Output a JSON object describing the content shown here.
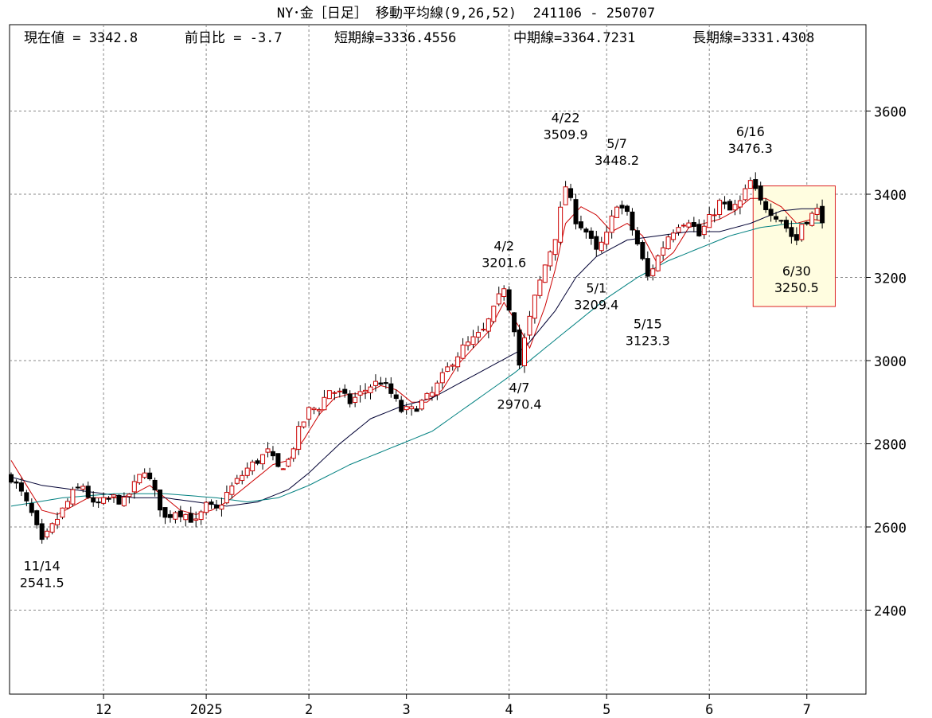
{
  "title": "NY･金［日足］ 移動平均線(9,26,52)  241106 - 250707",
  "info": {
    "current": "現在値 = 3342.8",
    "change": "前日比 = -3.7",
    "short": "短期線=3336.4556",
    "mid": "中期線=3364.7231",
    "long": "長期線=3331.4308"
  },
  "colors": {
    "up_fill": "#ffffff",
    "down_fill": "#000000",
    "short_ma": "#cc0000",
    "mid_ma": "#000033",
    "long_ma": "#008080",
    "highlight_fill": "#fffde0",
    "highlight_border": "#dd2222",
    "grid": "#888888"
  },
  "chart_data": {
    "type": "candlestick",
    "title": "NY･金［日足］ 移動平均線(9,26,52)  241106 - 250707",
    "ylim": [
      2200,
      3800
    ],
    "yticks": [
      2400,
      2600,
      2800,
      3000,
      3200,
      3400,
      3600
    ],
    "x_labels": [
      {
        "label": "12",
        "index": 18
      },
      {
        "label": "2025",
        "index": 38
      },
      {
        "label": "2",
        "index": 58
      },
      {
        "label": "3",
        "index": 77
      },
      {
        "label": "4",
        "index": 97
      },
      {
        "label": "5",
        "index": 116
      },
      {
        "label": "6",
        "index": 136
      },
      {
        "label": "7",
        "index": 155
      }
    ],
    "candle_count": 159,
    "annotations": [
      {
        "date": "11/14",
        "value": "2541.5",
        "index": 6,
        "position": "below"
      },
      {
        "date": "4/2",
        "value": "3201.6",
        "index": 96,
        "position": "above"
      },
      {
        "date": "4/7",
        "value": "2970.4",
        "index": 99,
        "position": "below"
      },
      {
        "date": "4/22",
        "value": "3509.9",
        "index": 108,
        "position": "above"
      },
      {
        "date": "5/1",
        "value": "3209.4",
        "index": 114,
        "position": "below"
      },
      {
        "date": "5/7",
        "value": "3448.2",
        "index": 118,
        "position": "above"
      },
      {
        "date": "5/15",
        "value": "3123.3",
        "index": 124,
        "position": "below"
      },
      {
        "date": "6/16",
        "value": "3476.3",
        "index": 144,
        "position": "above"
      },
      {
        "date": "6/30",
        "value": "3250.5",
        "index": 153,
        "position": "below"
      }
    ],
    "highlight": {
      "start_index": 145,
      "end_index": 161,
      "low": 3130,
      "high": 3420
    },
    "close_path": [
      [
        0,
        2720
      ],
      [
        2,
        2680
      ],
      [
        4,
        2630
      ],
      [
        6,
        2560
      ],
      [
        8,
        2600
      ],
      [
        10,
        2640
      ],
      [
        12,
        2680
      ],
      [
        14,
        2700
      ],
      [
        16,
        2650
      ],
      [
        18,
        2660
      ],
      [
        20,
        2670
      ],
      [
        22,
        2660
      ],
      [
        24,
        2700
      ],
      [
        26,
        2740
      ],
      [
        28,
        2680
      ],
      [
        30,
        2620
      ],
      [
        32,
        2640
      ],
      [
        34,
        2630
      ],
      [
        36,
        2610
      ],
      [
        38,
        2650
      ],
      [
        40,
        2640
      ],
      [
        42,
        2680
      ],
      [
        44,
        2710
      ],
      [
        46,
        2740
      ],
      [
        48,
        2760
      ],
      [
        50,
        2780
      ],
      [
        52,
        2740
      ],
      [
        54,
        2760
      ],
      [
        56,
        2830
      ],
      [
        58,
        2880
      ],
      [
        60,
        2890
      ],
      [
        62,
        2930
      ],
      [
        64,
        2920
      ],
      [
        66,
        2900
      ],
      [
        68,
        2920
      ],
      [
        70,
        2940
      ],
      [
        72,
        2950
      ],
      [
        74,
        2920
      ],
      [
        76,
        2880
      ],
      [
        78,
        2880
      ],
      [
        80,
        2900
      ],
      [
        82,
        2920
      ],
      [
        84,
        2960
      ],
      [
        86,
        3000
      ],
      [
        88,
        3030
      ],
      [
        90,
        3050
      ],
      [
        92,
        3070
      ],
      [
        94,
        3120
      ],
      [
        96,
        3180
      ],
      [
        98,
        3080
      ],
      [
        99,
        2990
      ],
      [
        100,
        3050
      ],
      [
        102,
        3150
      ],
      [
        104,
        3230
      ],
      [
        106,
        3300
      ],
      [
        108,
        3420
      ],
      [
        110,
        3340
      ],
      [
        112,
        3310
      ],
      [
        114,
        3260
      ],
      [
        116,
        3300
      ],
      [
        118,
        3380
      ],
      [
        120,
        3350
      ],
      [
        122,
        3280
      ],
      [
        124,
        3200
      ],
      [
        126,
        3250
      ],
      [
        128,
        3300
      ],
      [
        130,
        3330
      ],
      [
        132,
        3340
      ],
      [
        134,
        3300
      ],
      [
        136,
        3340
      ],
      [
        138,
        3380
      ],
      [
        140,
        3360
      ],
      [
        142,
        3380
      ],
      [
        144,
        3430
      ],
      [
        146,
        3380
      ],
      [
        148,
        3360
      ],
      [
        150,
        3340
      ],
      [
        152,
        3300
      ],
      [
        153,
        3290
      ],
      [
        154,
        3330
      ],
      [
        156,
        3350
      ],
      [
        157,
        3360
      ],
      [
        158,
        3343
      ]
    ],
    "short_ma_path": [
      [
        0,
        2760
      ],
      [
        3,
        2700
      ],
      [
        6,
        2640
      ],
      [
        9,
        2630
      ],
      [
        12,
        2650
      ],
      [
        15,
        2670
      ],
      [
        18,
        2670
      ],
      [
        21,
        2670
      ],
      [
        24,
        2680
      ],
      [
        27,
        2700
      ],
      [
        30,
        2670
      ],
      [
        33,
        2640
      ],
      [
        36,
        2630
      ],
      [
        39,
        2640
      ],
      [
        42,
        2660
      ],
      [
        45,
        2690
      ],
      [
        48,
        2720
      ],
      [
        51,
        2750
      ],
      [
        54,
        2760
      ],
      [
        57,
        2810
      ],
      [
        60,
        2870
      ],
      [
        63,
        2910
      ],
      [
        66,
        2920
      ],
      [
        69,
        2920
      ],
      [
        72,
        2940
      ],
      [
        75,
        2930
      ],
      [
        78,
        2900
      ],
      [
        81,
        2900
      ],
      [
        84,
        2930
      ],
      [
        87,
        2990
      ],
      [
        90,
        3030
      ],
      [
        93,
        3070
      ],
      [
        96,
        3140
      ],
      [
        99,
        3080
      ],
      [
        101,
        3030
      ],
      [
        104,
        3130
      ],
      [
        106,
        3220
      ],
      [
        108,
        3330
      ],
      [
        111,
        3370
      ],
      [
        114,
        3350
      ],
      [
        117,
        3310
      ],
      [
        120,
        3330
      ],
      [
        123,
        3300
      ],
      [
        126,
        3230
      ],
      [
        129,
        3260
      ],
      [
        132,
        3320
      ],
      [
        135,
        3330
      ],
      [
        138,
        3340
      ],
      [
        141,
        3360
      ],
      [
        144,
        3390
      ],
      [
        147,
        3390
      ],
      [
        150,
        3370
      ],
      [
        153,
        3330
      ],
      [
        156,
        3340
      ],
      [
        158,
        3336
      ]
    ],
    "mid_ma_path": [
      [
        0,
        2720
      ],
      [
        6,
        2700
      ],
      [
        12,
        2690
      ],
      [
        18,
        2680
      ],
      [
        24,
        2670
      ],
      [
        30,
        2670
      ],
      [
        36,
        2660
      ],
      [
        42,
        2650
      ],
      [
        48,
        2660
      ],
      [
        54,
        2690
      ],
      [
        58,
        2730
      ],
      [
        64,
        2800
      ],
      [
        70,
        2860
      ],
      [
        76,
        2890
      ],
      [
        82,
        2910
      ],
      [
        88,
        2950
      ],
      [
        94,
        2990
      ],
      [
        100,
        3030
      ],
      [
        106,
        3120
      ],
      [
        110,
        3200
      ],
      [
        114,
        3250
      ],
      [
        120,
        3290
      ],
      [
        126,
        3300
      ],
      [
        132,
        3310
      ],
      [
        138,
        3310
      ],
      [
        144,
        3330
      ],
      [
        150,
        3360
      ],
      [
        154,
        3365
      ],
      [
        158,
        3365
      ]
    ],
    "long_ma_path": [
      [
        0,
        2650
      ],
      [
        10,
        2670
      ],
      [
        20,
        2680
      ],
      [
        30,
        2680
      ],
      [
        40,
        2670
      ],
      [
        46,
        2660
      ],
      [
        52,
        2670
      ],
      [
        58,
        2700
      ],
      [
        66,
        2750
      ],
      [
        74,
        2790
      ],
      [
        82,
        2830
      ],
      [
        90,
        2900
      ],
      [
        98,
        2970
      ],
      [
        104,
        3030
      ],
      [
        110,
        3090
      ],
      [
        116,
        3150
      ],
      [
        122,
        3200
      ],
      [
        128,
        3240
      ],
      [
        134,
        3270
      ],
      [
        140,
        3300
      ],
      [
        146,
        3320
      ],
      [
        152,
        3330
      ],
      [
        158,
        3331
      ]
    ]
  }
}
